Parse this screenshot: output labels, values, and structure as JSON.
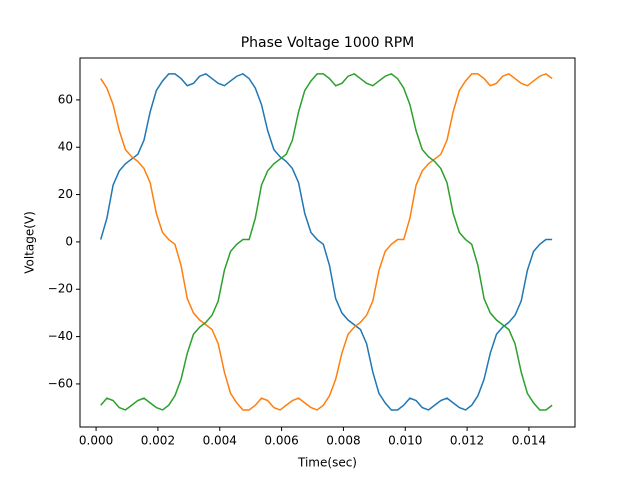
{
  "chart_data": {
    "type": "line",
    "title": "Phase Voltage 1000 RPM",
    "x_label": "Time(sec)",
    "y_label": "Voltage(V)",
    "x": [
      0.00015,
      0.00035,
      0.00055,
      0.00075,
      0.00095,
      0.00115,
      0.00135,
      0.00155,
      0.00175,
      0.00195,
      0.00215,
      0.00235,
      0.00255,
      0.00275,
      0.00295,
      0.00315,
      0.00335,
      0.00355,
      0.00375,
      0.00395,
      0.00415,
      0.00435,
      0.00455,
      0.00475,
      0.00495,
      0.00515,
      0.00535,
      0.00555,
      0.00575,
      0.00595,
      0.00615,
      0.00635,
      0.00655,
      0.00675,
      0.00695,
      0.00715,
      0.00735,
      0.00755,
      0.00775,
      0.00795,
      0.00815,
      0.00835,
      0.00855,
      0.00875,
      0.00895,
      0.00915,
      0.00935,
      0.00955,
      0.00975,
      0.00995,
      0.01015,
      0.01035,
      0.01055,
      0.01075,
      0.01095,
      0.01115,
      0.01135,
      0.01155,
      0.01175,
      0.01195,
      0.01215,
      0.01235,
      0.01255,
      0.01275,
      0.01295,
      0.01315,
      0.01335,
      0.01355,
      0.01375,
      0.01395,
      0.01415,
      0.01435,
      0.01455,
      0.01475
    ],
    "series": [
      {
        "color": "#1f77b4",
        "values": [
          1,
          10,
          24,
          30,
          33,
          35,
          37,
          43,
          55,
          64,
          68,
          71,
          71,
          69,
          66,
          67,
          70,
          71,
          69,
          67,
          66,
          68,
          70,
          71,
          69,
          65,
          58,
          47,
          39,
          36,
          34,
          31,
          25,
          12,
          4,
          1,
          -1,
          -10,
          -24,
          -30,
          -33,
          -35,
          -37,
          -43,
          -55,
          -64,
          -68,
          -71,
          -71,
          -69,
          -66,
          -67,
          -70,
          -71,
          -69,
          -67,
          -66,
          -68,
          -70,
          -71,
          -69,
          -65,
          -58,
          -47,
          -39,
          -36,
          -34,
          -31,
          -25,
          -12,
          -4,
          -1,
          1,
          1
        ]
      },
      {
        "color": "#ff7f0e",
        "values": [
          69,
          65,
          58,
          47,
          39,
          36,
          34,
          31,
          25,
          12,
          4,
          1,
          -1,
          -10,
          -24,
          -30,
          -33,
          -35,
          -37,
          -43,
          -55,
          -64,
          -68,
          -71,
          -71,
          -69,
          -66,
          -67,
          -70,
          -71,
          -69,
          -67,
          -66,
          -68,
          -70,
          -71,
          -69,
          -65,
          -58,
          -47,
          -39,
          -36,
          -34,
          -31,
          -25,
          -12,
          -4,
          -1,
          1,
          1,
          10,
          24,
          30,
          33,
          35,
          37,
          43,
          55,
          64,
          68,
          71,
          71,
          69,
          66,
          67,
          70,
          71,
          69,
          67,
          66,
          68,
          70,
          71,
          69
        ]
      },
      {
        "color": "#2ca02c",
        "values": [
          -69,
          -66,
          -67,
          -70,
          -71,
          -69,
          -67,
          -66,
          -68,
          -70,
          -71,
          -69,
          -65,
          -58,
          -47,
          -39,
          -36,
          -34,
          -31,
          -25,
          -12,
          -4,
          -1,
          1,
          1,
          10,
          24,
          30,
          33,
          35,
          37,
          43,
          55,
          64,
          68,
          71,
          71,
          69,
          66,
          67,
          70,
          71,
          69,
          67,
          66,
          68,
          70,
          71,
          69,
          65,
          58,
          47,
          39,
          36,
          34,
          31,
          25,
          12,
          4,
          1,
          -1,
          -10,
          -24,
          -30,
          -33,
          -35,
          -37,
          -43,
          -55,
          -64,
          -68,
          -71,
          -71,
          -69
        ]
      }
    ],
    "xlim": [
      -0.00052,
      0.01549
    ],
    "ylim": [
      -78.2,
      77.7
    ],
    "xticks": [
      {
        "value": 0,
        "label": "0.000"
      },
      {
        "value": 0.002,
        "label": "0.002"
      },
      {
        "value": 0.004,
        "label": "0.004"
      },
      {
        "value": 0.006,
        "label": "0.006"
      },
      {
        "value": 0.008,
        "label": "0.008"
      },
      {
        "value": 0.01,
        "label": "0.010"
      },
      {
        "value": 0.012,
        "label": "0.012"
      },
      {
        "value": 0.014,
        "label": "0.014"
      }
    ],
    "yticks": [
      {
        "value": -60,
        "label": "−60"
      },
      {
        "value": -40,
        "label": "−40"
      },
      {
        "value": -20,
        "label": "−20"
      },
      0,
      20,
      40,
      60
    ],
    "grid": false
  }
}
